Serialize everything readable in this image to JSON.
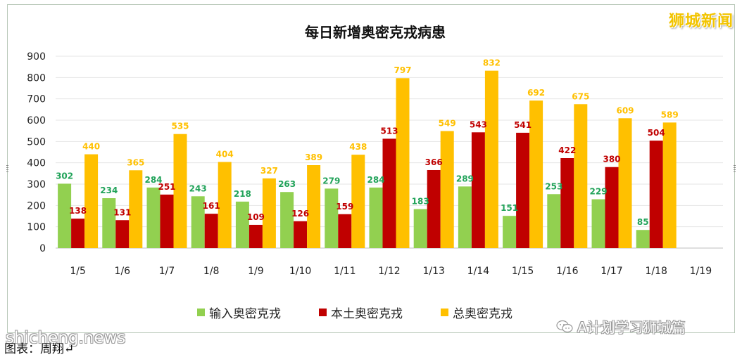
{
  "watermark": "狮城新闻",
  "wechat_account": "A计划学习狮城篇",
  "site_mark": "shicheng.news",
  "caption": "图表：周翔↵",
  "colors": {
    "imported": "#92d050",
    "local": "#c00000",
    "total": "#ffc000",
    "imported_label": "#22a35a"
  },
  "chart_data": {
    "type": "bar",
    "title": "每日新增奥密克戎病患",
    "categories": [
      "1/5",
      "1/6",
      "1/7",
      "1/8",
      "1/9",
      "1/10",
      "1/11",
      "1/12",
      "1/13",
      "1/14",
      "1/15",
      "1/16",
      "1/17",
      "1/18",
      "1/19"
    ],
    "ylim": [
      0,
      900
    ],
    "yticks": [
      0,
      100,
      200,
      300,
      400,
      500,
      600,
      700,
      800,
      900
    ],
    "grid": true,
    "legend_position": "bottom",
    "series": [
      {
        "name": "输入奥密克戎",
        "values": [
          302,
          234,
          284,
          243,
          218,
          263,
          279,
          284,
          183,
          289,
          151,
          253,
          229,
          85,
          null
        ]
      },
      {
        "name": "本土奥密克戎",
        "values": [
          138,
          131,
          251,
          161,
          109,
          126,
          159,
          513,
          366,
          543,
          541,
          422,
          380,
          504,
          null
        ]
      },
      {
        "name": "总奥密克戎",
        "values": [
          440,
          365,
          535,
          404,
          327,
          389,
          438,
          797,
          549,
          832,
          692,
          675,
          609,
          589,
          null
        ]
      }
    ]
  }
}
